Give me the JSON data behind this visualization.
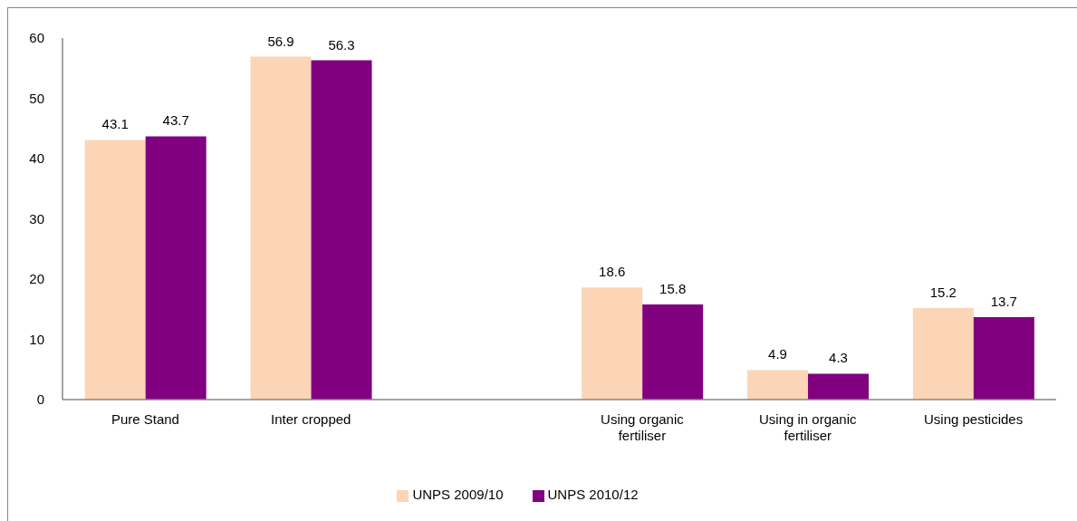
{
  "chart_data": {
    "type": "bar",
    "categories": [
      "Pure Stand",
      "Inter cropped",
      null,
      "Using organic fertiliser",
      "Using in organic fertiliser",
      "Using pesticides"
    ],
    "series": [
      {
        "name": "UNPS 2009/10",
        "color": "#fbd5b5",
        "values": [
          43.1,
          56.9,
          null,
          18.6,
          4.9,
          15.2
        ]
      },
      {
        "name": "UNPS 2010/12",
        "color": "#800080",
        "values": [
          43.7,
          56.3,
          null,
          15.8,
          4.3,
          13.7
        ]
      }
    ],
    "ylim": [
      0,
      60
    ],
    "yticks": [
      0,
      10,
      20,
      30,
      40,
      50,
      60
    ],
    "data_labels": true,
    "legend": "bottom"
  }
}
